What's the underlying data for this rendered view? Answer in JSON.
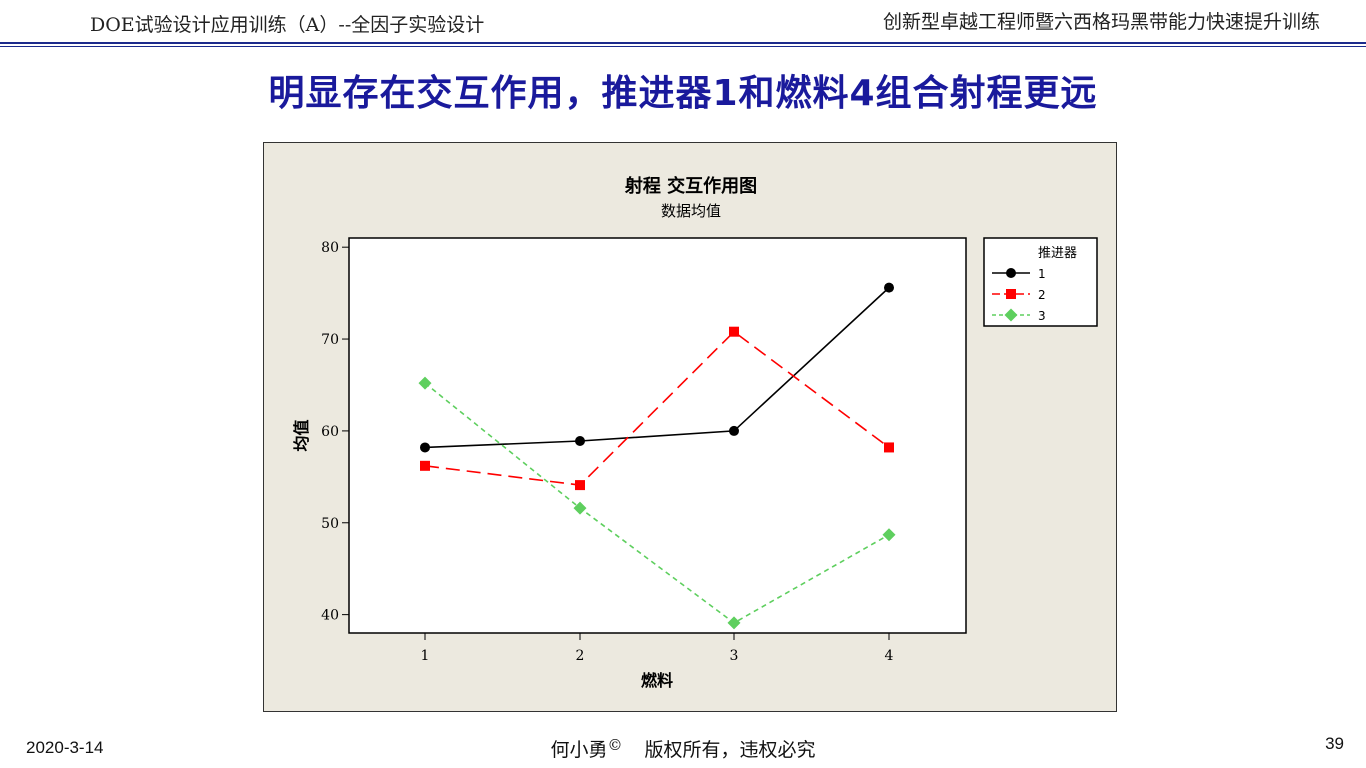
{
  "header": {
    "left": "DOE试验设计应用训练（A）--全因子实验设计",
    "right": "创新型卓越工程师暨六西格玛黑带能力快速提升训练"
  },
  "slide_title": "明显存在交互作用，推进器1和燃料4组合射程更远",
  "footer": {
    "date": "2020-3-14",
    "author": "何小勇",
    "copyright_symbol": "©",
    "rights": "版权所有，违权必究",
    "page": "39"
  },
  "chart_data": {
    "type": "line",
    "title": "射程  交互作用图",
    "subtitle": "数据均值",
    "xlabel": "燃料",
    "ylabel": "均值",
    "categories": [
      "1",
      "2",
      "3",
      "4"
    ],
    "ylim": [
      38,
      81
    ],
    "yticks": [
      40,
      50,
      60,
      70,
      80
    ],
    "grid": false,
    "legend": {
      "title": "推进器",
      "placement": "top-right"
    },
    "series": [
      {
        "name": "1",
        "values": [
          58.2,
          58.9,
          60.0,
          75.6
        ],
        "color": "#000000",
        "marker": "circle",
        "dash": "solid"
      },
      {
        "name": "2",
        "values": [
          56.2,
          54.1,
          70.8,
          58.2
        ],
        "color": "#ff0000",
        "marker": "square",
        "dash": "long-dash"
      },
      {
        "name": "3",
        "values": [
          65.2,
          51.6,
          39.1,
          48.7
        ],
        "color": "#5ecf5e",
        "marker": "diamond",
        "dash": "short-dash"
      }
    ]
  }
}
